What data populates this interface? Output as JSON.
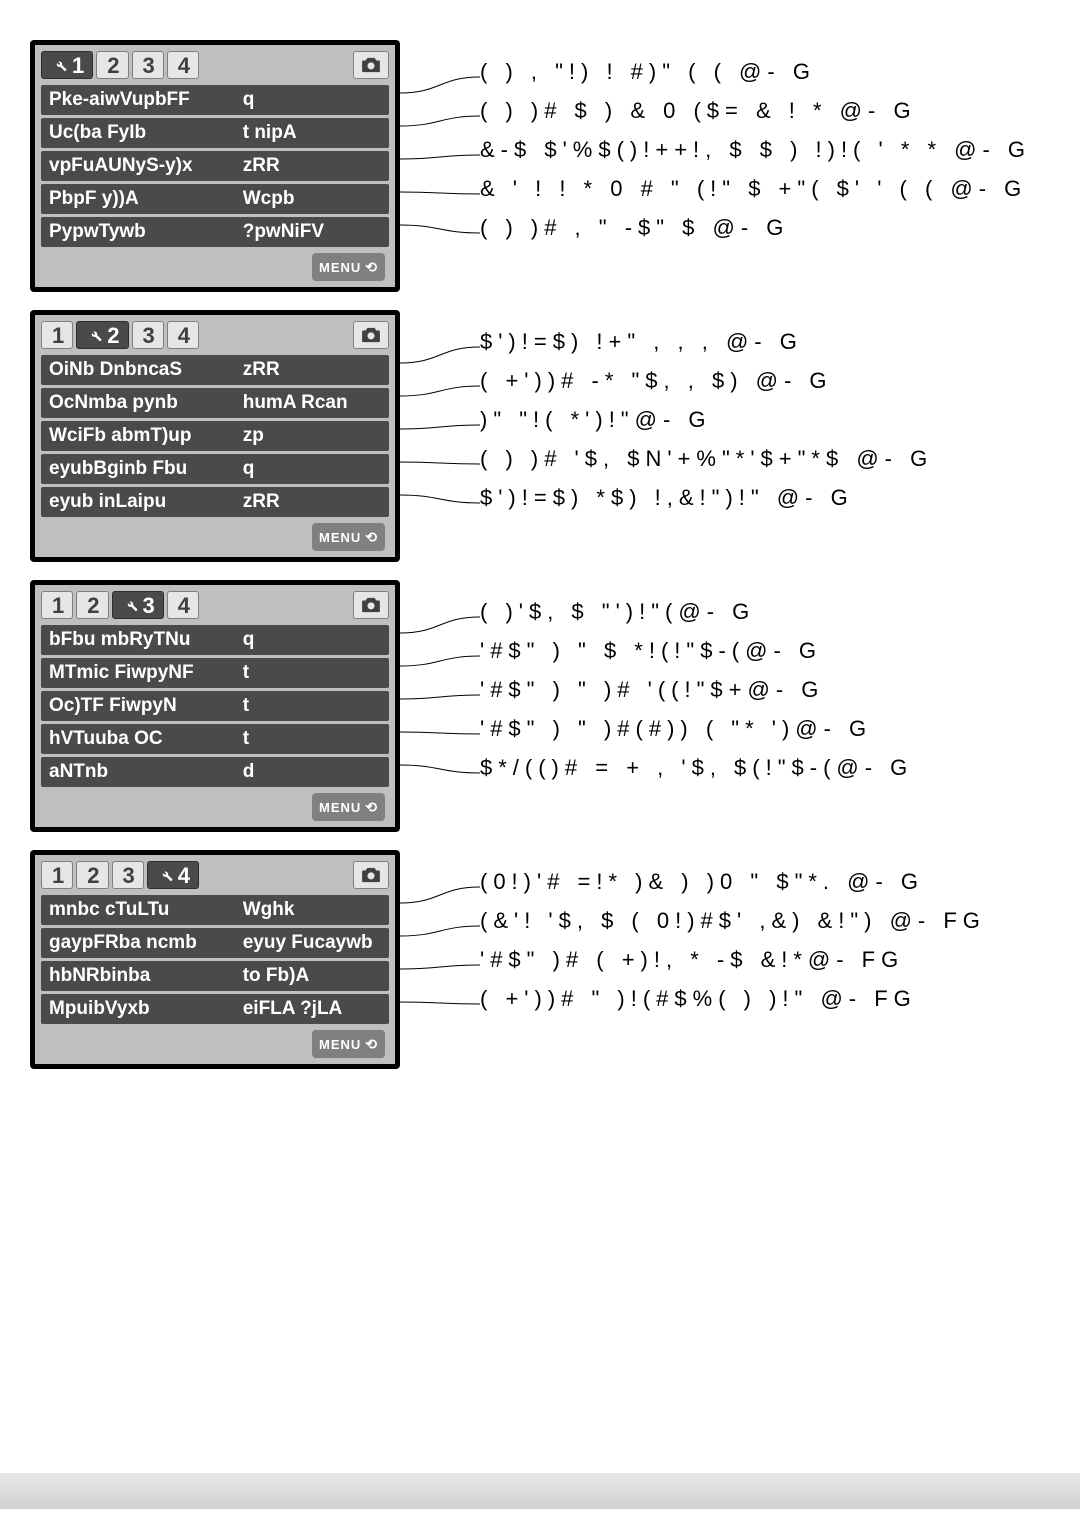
{
  "colors": {
    "panel_border": "#000000",
    "panel_bg": "#bfbfbf",
    "tab_inactive_bg": "#e6e6e6",
    "tab_inactive_fg": "#404040",
    "tab_active_bg": "#4a4a4a",
    "tab_active_fg": "#ffffff",
    "row_bg": "#4a4a4a",
    "row_fg": "#ffffff",
    "menu_badge_bg": "#808080",
    "menu_badge_fg": "#ffffff",
    "desc_fg": "#000000",
    "footer_gradient_top": "#e8e8e8",
    "footer_gradient_bottom": "#d0d0d0"
  },
  "blocks": [
    {
      "tabs": [
        "1",
        "2",
        "3",
        "4"
      ],
      "active": 0,
      "rows": [
        {
          "label": "Pke-aiwVupbFF",
          "value": "q",
          "desc": "( ) ,  \"!)   ! #)\" ( ( @-   G"
        },
        {
          "label": "Uc(ba FyIb",
          "value": "t nipA",
          "desc": "( ) )# $ ) & 0  ($= & ! * @-   G"
        },
        {
          "label": "vpFuAUNyS-y)x",
          "value": "zRR",
          "desc": "&-$  $'%$()!++!, $  $ ) !)!(  ' * * @-   G"
        },
        {
          "label": "PbpF y))A",
          "value": "Wcpb",
          "desc": "& ' ! ! * 0 # \"  (!\"  $ +\"( $' ' ( (   @-   G"
        },
        {
          "label": "PypwTywb",
          "value": "?pwNiFV",
          "desc": "( ) )# , \"  -$\"  $  @-   G"
        }
      ]
    },
    {
      "tabs": [
        "1",
        "2",
        "3",
        "4"
      ],
      "active": 1,
      "rows": [
        {
          "label": "OiNb DnbncaS",
          "value": "zRR",
          "desc": "$')!=$) !+\" ,   , ,   @-   G"
        },
        {
          "label": "OcNmba pynb",
          "value": "humA Rcan",
          "desc": "( +'))#  -* \"$,   , $) @-   G"
        },
        {
          "label": "WciFb abmT)up",
          "value": "zp",
          "desc": ")\"   \"!(  *')!\"@-   G"
        },
        {
          "label": "eyubBginb Fbu",
          "value": "q",
          "desc": "( ) )# '$,  $N'+%\"*'$+\"*$ @-   G"
        },
        {
          "label": "eyub inLaipu",
          "value": "zRR",
          "desc": "$')!=$) *$) !,&!\")!\" @-   G"
        }
      ]
    },
    {
      "tabs": [
        "1",
        "2",
        "3",
        "4"
      ],
      "active": 2,
      "rows": [
        {
          "label": "bFbu mbRyTNu",
          "value": "q",
          "desc": "( )'$,  $  \"')!\"(@-   G"
        },
        {
          "label": "MTmic FiwpyNF",
          "value": "t",
          "desc": "'#$\"    ) \"   $ *!(!\"$-(@-   G"
        },
        {
          "label": "Oc)TF FiwpyN",
          "value": "t",
          "desc": "'#$\"    ) \"   )#  '((!\"$+@-   G"
        },
        {
          "label": "hVTuuba OC",
          "value": "t",
          "desc": "'#$\"    ) \"   )#(#)) (  \"*  ')@-   G"
        },
        {
          "label": "aNTnb",
          "value": "d",
          "desc": "$*/(()# = + ,  '$,  $(!\"$-(@-   G"
        }
      ]
    },
    {
      "tabs": [
        "1",
        "2",
        "3",
        "4"
      ],
      "active": 3,
      "rows": [
        {
          "label": "mnbc cTuLTu",
          "value": "Wghk",
          "desc": "(0!)'# =!*   )& ) )0 \"   $\"*.  @-   G"
        },
        {
          "label": "gaypFRba ncmb",
          "value": "eyuy Fucaywb",
          "desc": "(&'! '$, $ ( 0!)#$' ,&)  &!\") @- FG"
        },
        {
          "label": "hbNRbinba",
          "value": "to Fb)A",
          "desc": "'#$\"  )# ( +)!,  * -$ &!*@- FG"
        },
        {
          "label": "MpuibVyxb",
          "value": "eiFLA ?jLA",
          "desc": "( +'))#  \" )!(#$%( ) )!\" @- FG"
        }
      ]
    }
  ],
  "menu_badge": "MENU"
}
